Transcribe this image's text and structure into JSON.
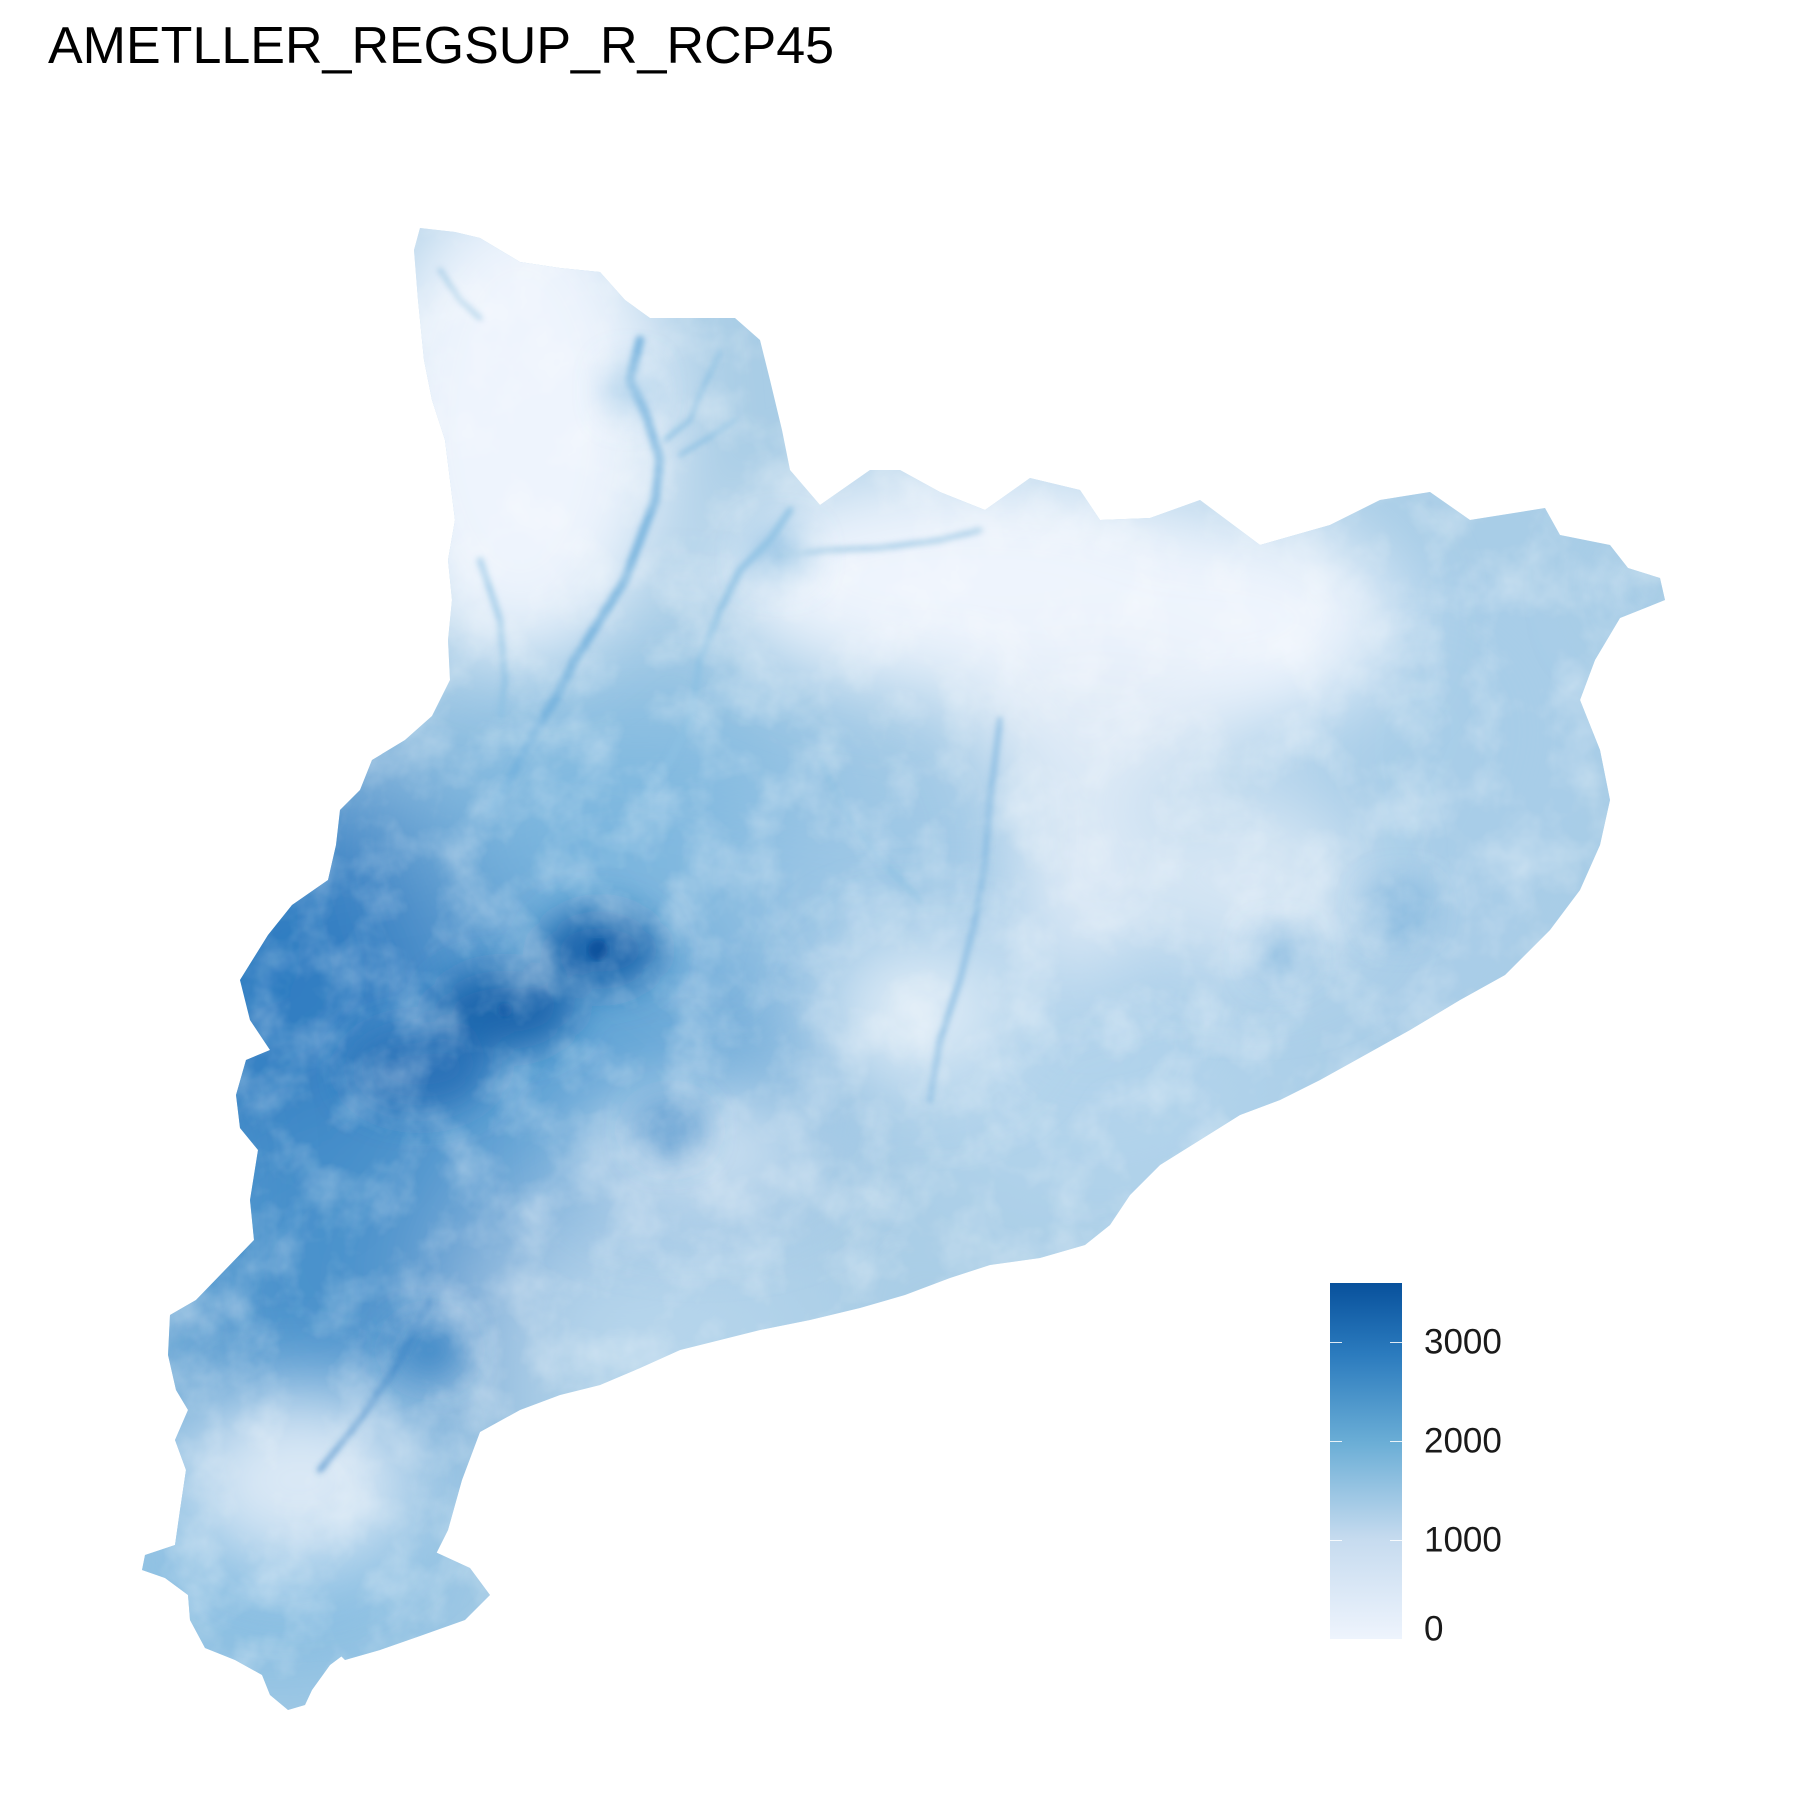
{
  "title": "AMETLLER_REGSUP_R_RCP45",
  "colors": {
    "low": "#eef4fd",
    "mid_low": "#c6dbef",
    "mid": "#6baed6",
    "mid_high": "#2b7bbe",
    "high": "#08519c"
  },
  "legend": {
    "min": 0,
    "max": 3600,
    "ticks": [
      {
        "value": 0,
        "label": "0"
      },
      {
        "value": 1000,
        "label": "1000"
      },
      {
        "value": 2000,
        "label": "2000"
      },
      {
        "value": 3000,
        "label": "3000"
      }
    ]
  }
}
